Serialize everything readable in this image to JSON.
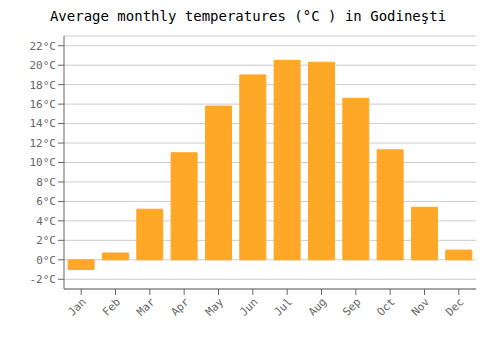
{
  "chart_data": {
    "type": "bar",
    "title": "Average monthly temperatures (°C ) in Godineşti",
    "categories": [
      "Jan",
      "Feb",
      "Mar",
      "Apr",
      "May",
      "Jun",
      "Jul",
      "Aug",
      "Sep",
      "Oct",
      "Nov",
      "Dec"
    ],
    "values": [
      -1.0,
      0.7,
      5.2,
      11.0,
      15.8,
      19.0,
      20.5,
      20.3,
      16.6,
      11.3,
      5.4,
      1.0
    ],
    "color": "#FFA726",
    "ylim": [
      -3,
      23
    ],
    "yticks": [
      {
        "value": -2,
        "label": "-2°C"
      },
      {
        "value": 0,
        "label": "0°C"
      },
      {
        "value": 2,
        "label": "2°C"
      },
      {
        "value": 4,
        "label": "4°C"
      },
      {
        "value": 6,
        "label": "6°C"
      },
      {
        "value": 8,
        "label": "8°C"
      },
      {
        "value": 10,
        "label": "10°C"
      },
      {
        "value": 12,
        "label": "12°C"
      },
      {
        "value": 14,
        "label": "14°C"
      },
      {
        "value": 16,
        "label": "16°C"
      },
      {
        "value": 18,
        "label": "18°C"
      },
      {
        "value": 20,
        "label": "20°C"
      },
      {
        "value": 22,
        "label": "22°C"
      }
    ],
    "grid": true
  }
}
